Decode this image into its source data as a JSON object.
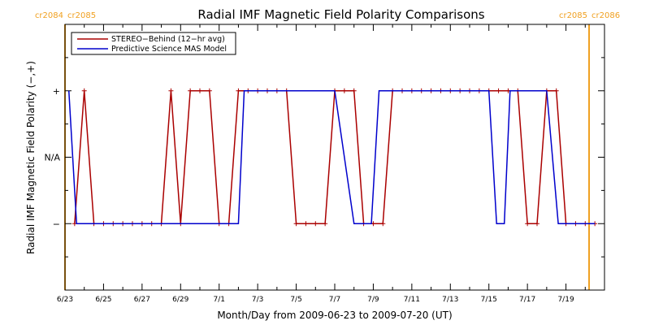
{
  "chart_data": {
    "type": "line",
    "title": "Radial IMF Magnetic Field Polarity Comparisons",
    "xlabel": "Month/Day from 2009-06-23 to 2009-07-20 (UT)",
    "ylabel": "Radial IMF Magnetic Field Polarity (−,+)",
    "xlim": [
      0,
      28
    ],
    "ylim": [
      -2,
      2
    ],
    "x_tick_values": [
      0,
      2,
      4,
      6,
      8,
      10,
      12,
      14,
      16,
      18,
      20,
      22,
      24,
      26
    ],
    "x_tick_labels": [
      "6/23",
      "6/25",
      "6/27",
      "6/29",
      "7/1",
      "7/3",
      "7/5",
      "7/7",
      "7/9",
      "7/11",
      "7/13",
      "7/15",
      "7/17",
      "7/19"
    ],
    "y_ticks": [
      {
        "value": 1,
        "label": "+"
      },
      {
        "value": 0,
        "label": "N/A"
      },
      {
        "value": -1,
        "label": "−"
      }
    ],
    "carrington": [
      {
        "x": 0,
        "label_left": "cr2084",
        "label_right": "cr2085"
      },
      {
        "x": 27.2,
        "label_left": "cr2085",
        "label_right": "cr2086"
      }
    ],
    "legend_position": "top-left",
    "series": [
      {
        "name": "STEREO−Behind (12−hr avg)",
        "color": "#aa0000",
        "markers": true,
        "x": [
          0.5,
          1.0,
          1.5,
          2.0,
          2.5,
          3.0,
          3.5,
          4.0,
          4.5,
          5.0,
          5.5,
          6.0,
          6.5,
          7.0,
          7.5,
          8.0,
          8.5,
          9.0,
          9.5,
          10.0,
          10.5,
          11.0,
          11.5,
          12.0,
          12.5,
          13.0,
          13.5,
          14.0,
          14.5,
          15.0,
          15.5,
          16.0,
          16.5,
          17.0,
          17.5,
          18.0,
          18.5,
          19.0,
          19.5,
          20.0,
          20.5,
          21.0,
          21.5,
          22.0,
          22.5,
          23.0,
          23.5,
          24.0,
          24.5,
          25.0,
          25.5,
          26.0,
          26.5,
          27.0,
          27.5
        ],
        "y": [
          -1,
          1,
          -1,
          -1,
          -1,
          -1,
          -1,
          -1,
          -1,
          -1,
          1,
          -1,
          1,
          1,
          1,
          -1,
          -1,
          1,
          1,
          1,
          1,
          1,
          1,
          -1,
          -1,
          -1,
          -1,
          1,
          1,
          1,
          -1,
          -1,
          -1,
          1,
          1,
          1,
          1,
          1,
          1,
          1,
          1,
          1,
          1,
          1,
          1,
          1,
          1,
          -1,
          -1,
          1,
          1,
          -1,
          -1,
          -1,
          -1
        ]
      },
      {
        "name": "Predictive Science MAS Model",
        "color": "#0000cc",
        "markers": false,
        "x": [
          0.2,
          0.6,
          1.0,
          1.5,
          2.0,
          3.0,
          4.0,
          5.0,
          6.0,
          7.0,
          8.0,
          9.0,
          9.3,
          9.6,
          10.0,
          11.0,
          12.0,
          13.0,
          13.5,
          14.0,
          15.0,
          15.5,
          15.9,
          16.3,
          17.0,
          18.0,
          19.0,
          20.0,
          21.0,
          22.0,
          22.4,
          22.8,
          23.1,
          23.5,
          24.0,
          25.0,
          25.6,
          26.0,
          27.0,
          27.5
        ],
        "y": [
          1,
          -1,
          -1,
          -1,
          -1,
          -1,
          -1,
          -1,
          -1,
          -1,
          -1,
          -1,
          1,
          1,
          1,
          1,
          1,
          1,
          1,
          1,
          -1,
          -1,
          -1,
          1,
          1,
          1,
          1,
          1,
          1,
          1,
          -1,
          -1,
          1,
          1,
          1,
          1,
          -1,
          -1,
          -1,
          -1
        ]
      }
    ]
  }
}
